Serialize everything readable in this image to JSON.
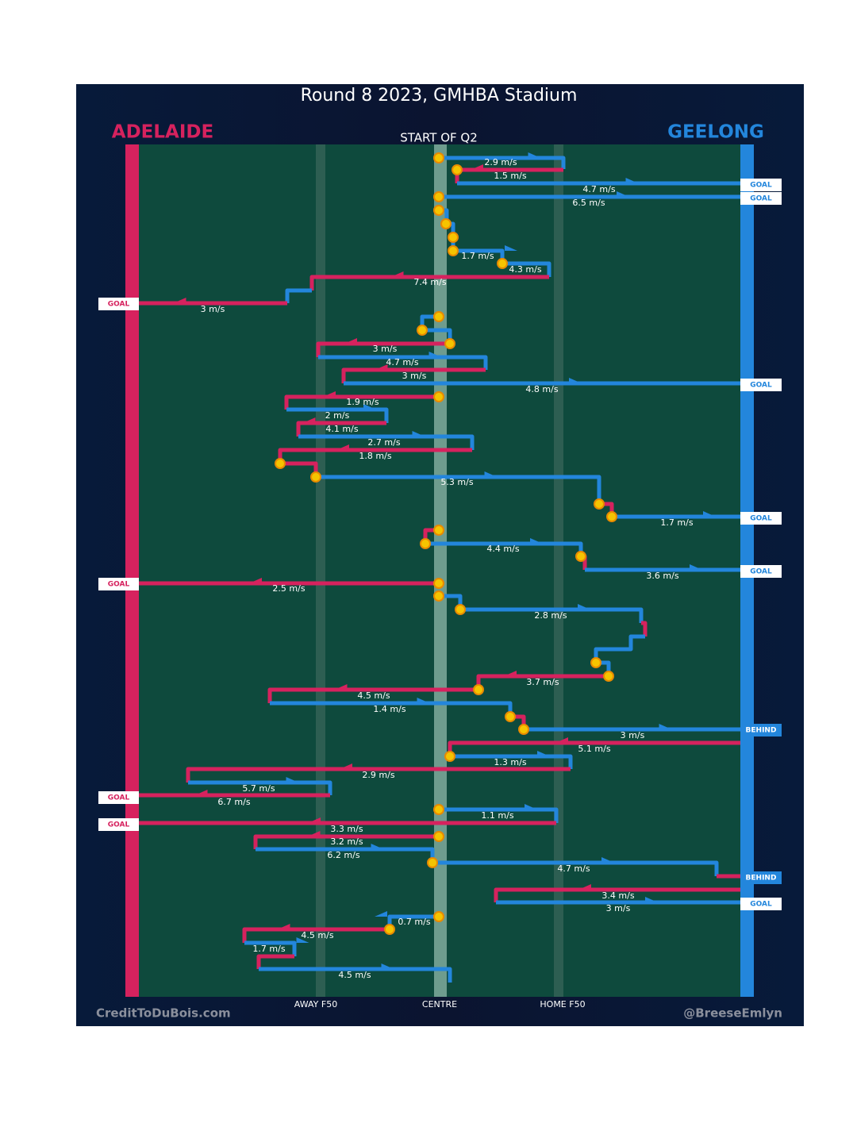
{
  "header": {
    "title": "Round 8 2023, GMHBA Stadium",
    "team_left": "ADELAIDE",
    "team_right": "GEELONG",
    "start_label": "START OF Q2"
  },
  "axis_labels": [
    "AWAY F50",
    "CENTRE",
    "HOME F50"
  ],
  "credits": {
    "left": "CreditToDuBois.com",
    "right": "@BreeseEmlyn"
  },
  "speeds": [
    "2.9 m/s",
    "1.5 m/s",
    "4.7 m/s",
    "6.5 m/s",
    "1.7 m/s",
    "4.3 m/s",
    "7.4 m/s",
    "3 m/s",
    "3 m/s",
    "4.7 m/s",
    "3 m/s",
    "4.8 m/s",
    "1.9 m/s",
    "2 m/s",
    "4.1 m/s",
    "2.7 m/s",
    "1.8 m/s",
    "5.3 m/s",
    "1.7 m/s",
    "4.4 m/s",
    "3.6 m/s",
    "2.5 m/s",
    "2.8 m/s",
    "3.7 m/s",
    "4.5 m/s",
    "1.4 m/s",
    "3 m/s",
    "5.1 m/s",
    "1.3 m/s",
    "2.9 m/s",
    "5.7 m/s",
    "6.7 m/s",
    "1.1 m/s",
    "3.3 m/s",
    "3.2 m/s",
    "6.2 m/s",
    "4.7 m/s",
    "3.4 m/s",
    "3 m/s",
    "0.7 m/s",
    "4.5 m/s",
    "1.7 m/s",
    "4.5 m/s"
  ],
  "outcomes": [
    "GOAL",
    "GOAL",
    "GOAL",
    "GOAL",
    "GOAL",
    "GOAL",
    "GOAL",
    "BEHIND",
    "GOAL",
    "GOAL",
    "BEHIND",
    "GOAL"
  ]
}
